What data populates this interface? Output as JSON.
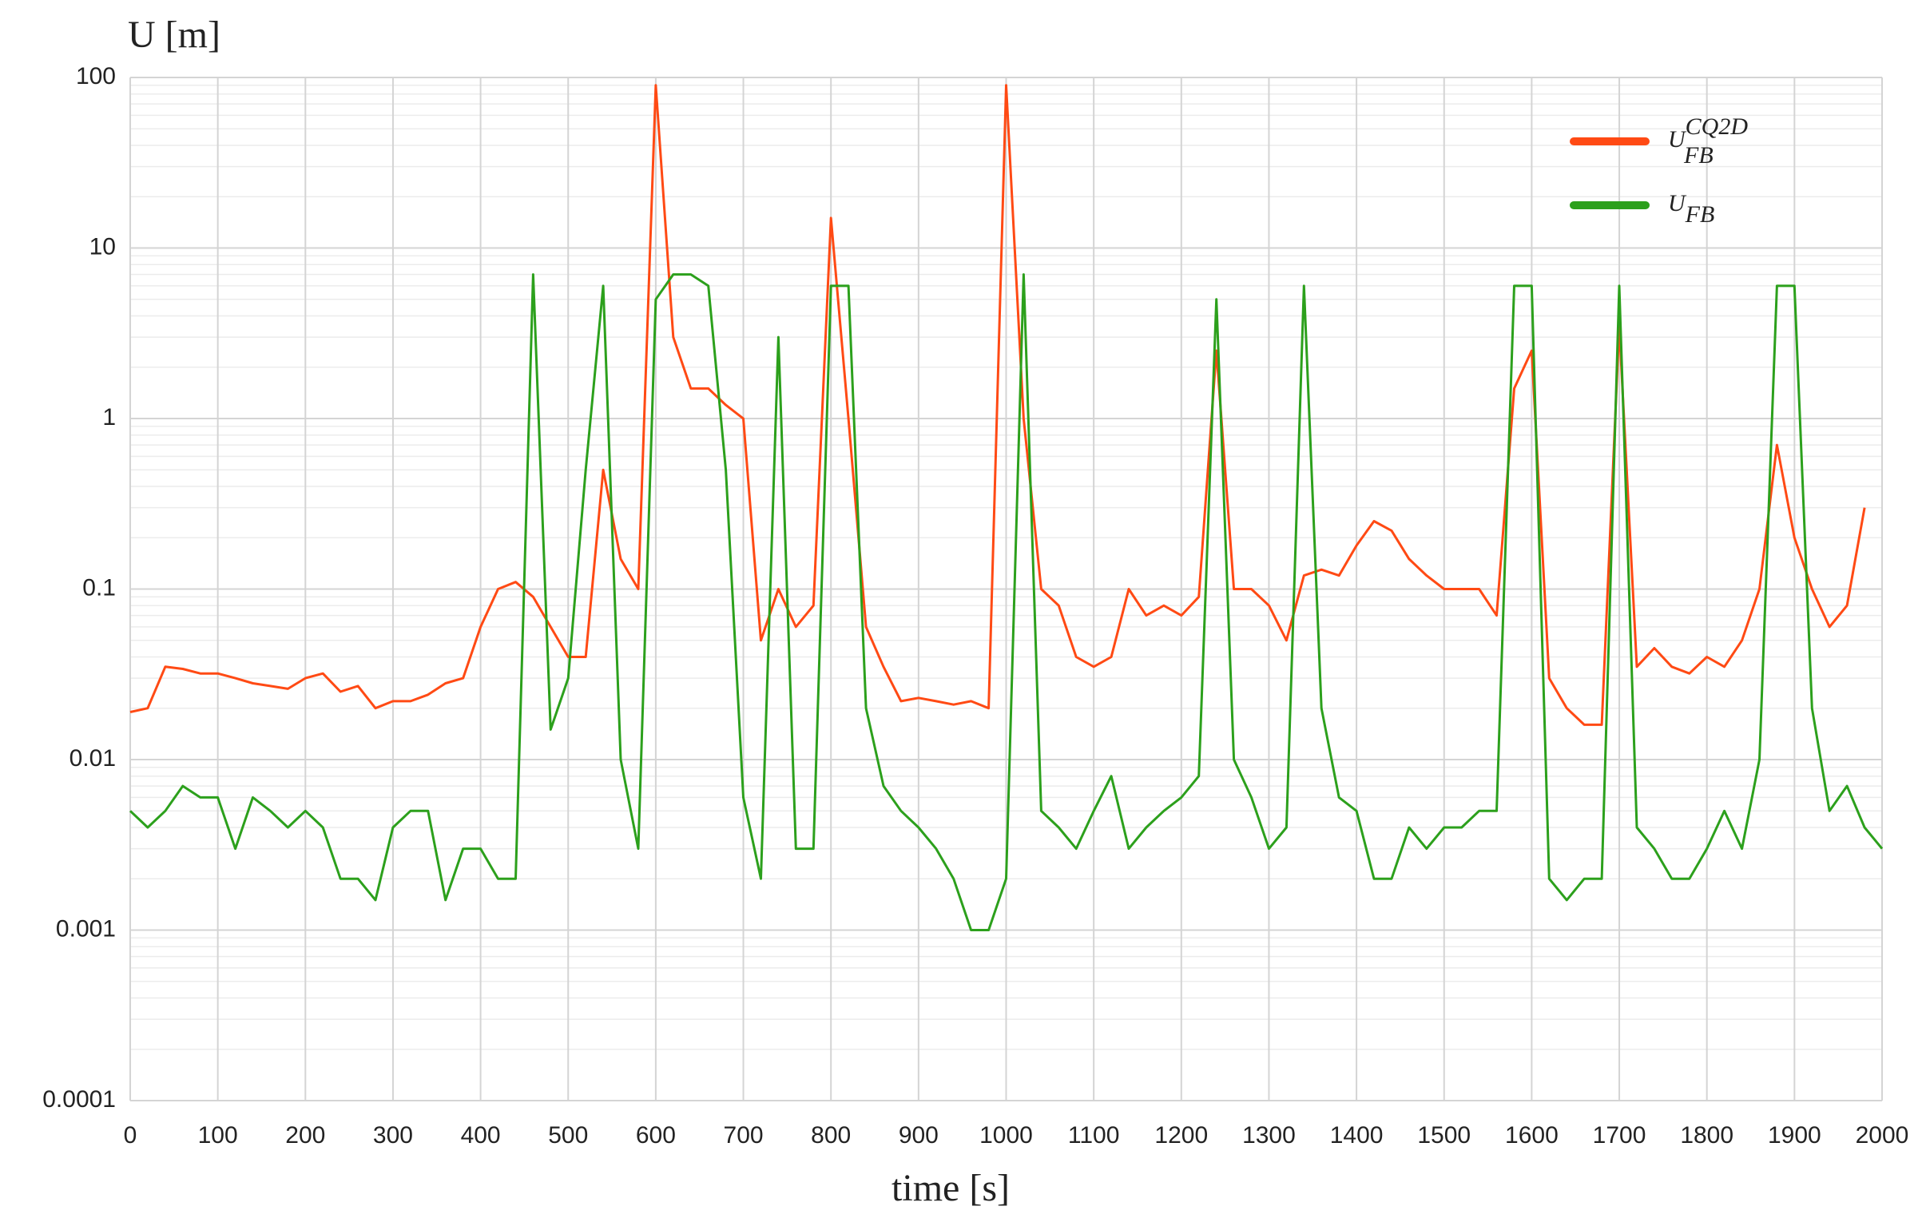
{
  "chart_data": {
    "type": "line",
    "y_label": "U [m]",
    "x_label": "time [s]",
    "x": [
      0,
      20,
      40,
      60,
      80,
      100,
      120,
      140,
      160,
      180,
      200,
      220,
      240,
      260,
      280,
      300,
      320,
      340,
      360,
      380,
      400,
      420,
      440,
      460,
      480,
      500,
      520,
      540,
      560,
      580,
      600,
      620,
      640,
      660,
      680,
      700,
      720,
      740,
      760,
      780,
      800,
      820,
      840,
      860,
      880,
      900,
      920,
      940,
      960,
      980,
      1000,
      1020,
      1040,
      1060,
      1080,
      1100,
      1120,
      1140,
      1160,
      1180,
      1200,
      1220,
      1240,
      1260,
      1280,
      1300,
      1320,
      1340,
      1360,
      1380,
      1400,
      1420,
      1440,
      1460,
      1480,
      1500,
      1520,
      1540,
      1560,
      1580,
      1600,
      1620,
      1640,
      1660,
      1680,
      1700,
      1720,
      1740,
      1760,
      1780,
      1800,
      1820,
      1840,
      1860,
      1880,
      1900,
      1920,
      1940,
      1960,
      1980,
      2000
    ],
    "series": [
      {
        "name": "U",
        "name_sub": "FB",
        "name_sup": "CQ2D",
        "color": "#ff4a14",
        "values": [
          0.019,
          0.02,
          0.035,
          0.034,
          0.032,
          0.032,
          0.03,
          0.028,
          0.027,
          0.026,
          0.03,
          0.032,
          0.025,
          0.027,
          0.02,
          0.022,
          0.022,
          0.024,
          0.028,
          0.03,
          0.06,
          0.1,
          0.11,
          0.09,
          0.06,
          0.04,
          0.04,
          0.5,
          0.15,
          0.1,
          90,
          3,
          1.5,
          1.5,
          1.2,
          1,
          0.05,
          0.1,
          0.06,
          0.08,
          15,
          1,
          0.06,
          0.035,
          0.022,
          0.023,
          0.022,
          0.021,
          0.022,
          0.02,
          90,
          1,
          0.1,
          0.08,
          0.04,
          0.035,
          0.04,
          0.1,
          0.07,
          0.08,
          0.07,
          0.09,
          2.5,
          0.1,
          0.1,
          0.08,
          0.05,
          0.12,
          0.13,
          0.12,
          0.18,
          0.25,
          0.22,
          0.15,
          0.12,
          0.1,
          0.1,
          0.1,
          0.07,
          1.5,
          2.5,
          0.03,
          0.02,
          0.016,
          0.016,
          3.5,
          0.035,
          0.045,
          0.035,
          0.032,
          0.04,
          0.035,
          0.05,
          0.1,
          0.7,
          0.2,
          0.1,
          0.06,
          0.08,
          0.3,
          null
        ]
      },
      {
        "name": "U",
        "name_sub": "FB",
        "color": "#2ca01c",
        "values": [
          0.005,
          0.004,
          0.005,
          0.007,
          0.006,
          0.006,
          0.003,
          0.006,
          0.005,
          0.004,
          0.005,
          0.004,
          0.002,
          0.002,
          0.0015,
          0.004,
          0.005,
          0.005,
          0.0015,
          0.003,
          0.003,
          0.002,
          0.002,
          7,
          0.015,
          0.03,
          0.5,
          6,
          0.01,
          0.003,
          5,
          7,
          7,
          6,
          0.5,
          0.006,
          0.002,
          3,
          0.003,
          0.003,
          6,
          6,
          0.02,
          0.007,
          0.005,
          0.004,
          0.003,
          0.002,
          0.001,
          0.001,
          0.002,
          7,
          0.005,
          0.004,
          0.003,
          0.005,
          0.008,
          0.003,
          0.004,
          0.005,
          0.006,
          0.008,
          5,
          0.01,
          0.006,
          0.003,
          0.004,
          6,
          0.02,
          0.006,
          0.005,
          0.002,
          0.002,
          0.004,
          0.003,
          0.004,
          0.004,
          0.005,
          0.005,
          6,
          6,
          0.002,
          0.0015,
          0.002,
          0.002,
          6,
          0.004,
          0.003,
          0.002,
          0.002,
          0.003,
          0.005,
          0.003,
          0.01,
          6,
          6,
          0.02,
          0.005,
          0.007,
          0.004,
          0.003
        ]
      }
    ],
    "xlim": [
      0,
      2000
    ],
    "xticks": [
      0,
      100,
      200,
      300,
      400,
      500,
      600,
      700,
      800,
      900,
      1000,
      1100,
      1200,
      1300,
      1400,
      1500,
      1600,
      1700,
      1800,
      1900,
      2000
    ],
    "ylim": [
      0.0001,
      100
    ],
    "yticks": [
      0.0001,
      0.001,
      0.01,
      0.1,
      1,
      10,
      100
    ],
    "log_y": true,
    "grid": true,
    "legend": "upper right"
  }
}
